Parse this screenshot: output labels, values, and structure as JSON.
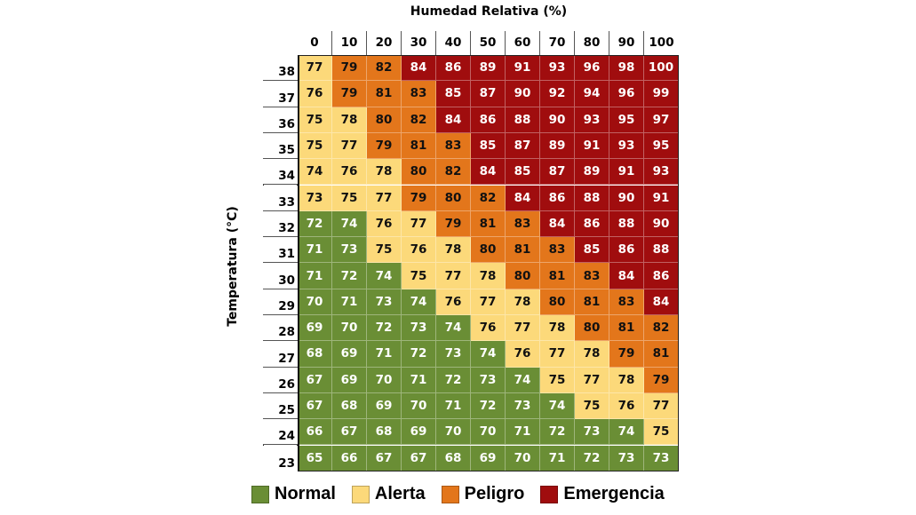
{
  "chart_data": {
    "type": "heatmap",
    "title": "Humedad Relativa (%)",
    "xlabel": "Humedad Relativa (%)",
    "ylabel": "Temperatura (°C)",
    "x": [
      0,
      10,
      20,
      30,
      40,
      50,
      60,
      70,
      80,
      90,
      100
    ],
    "y": [
      38,
      37,
      36,
      35,
      34,
      33,
      32,
      31,
      30,
      29,
      28,
      27,
      26,
      25,
      24,
      23
    ],
    "values": [
      [
        77,
        79,
        82,
        84,
        86,
        89,
        91,
        93,
        96,
        98,
        100
      ],
      [
        76,
        79,
        81,
        83,
        85,
        87,
        90,
        92,
        94,
        96,
        99
      ],
      [
        75,
        78,
        80,
        82,
        84,
        86,
        88,
        90,
        93,
        95,
        97
      ],
      [
        75,
        77,
        79,
        81,
        83,
        85,
        87,
        89,
        91,
        93,
        95
      ],
      [
        74,
        76,
        78,
        80,
        82,
        84,
        85,
        87,
        89,
        91,
        93
      ],
      [
        73,
        75,
        77,
        79,
        80,
        82,
        84,
        86,
        88,
        90,
        91
      ],
      [
        72,
        74,
        76,
        77,
        79,
        81,
        83,
        84,
        86,
        88,
        90
      ],
      [
        71,
        73,
        75,
        76,
        78,
        80,
        81,
        83,
        85,
        86,
        88
      ],
      [
        71,
        72,
        74,
        75,
        77,
        78,
        80,
        81,
        83,
        84,
        86
      ],
      [
        70,
        71,
        73,
        74,
        76,
        77,
        78,
        80,
        81,
        83,
        84
      ],
      [
        69,
        70,
        72,
        73,
        74,
        76,
        77,
        78,
        80,
        81,
        82
      ],
      [
        68,
        69,
        71,
        72,
        73,
        74,
        76,
        77,
        78,
        79,
        81
      ],
      [
        67,
        69,
        70,
        71,
        72,
        73,
        74,
        75,
        77,
        78,
        79
      ],
      [
        67,
        68,
        69,
        70,
        71,
        72,
        73,
        74,
        75,
        76,
        77
      ],
      [
        66,
        67,
        68,
        69,
        70,
        70,
        71,
        72,
        73,
        74,
        75
      ],
      [
        65,
        66,
        67,
        67,
        68,
        69,
        70,
        71,
        72,
        73,
        73
      ]
    ],
    "categories_grid": [
      "APPEEEEEEEE",
      "APPPEEEEEEE",
      "AAPPEEEEEEE",
      "AAPPPEEEEEE",
      "AAAPPEEEEEE",
      "AAAPPPEEEEE",
      "NNAAPPPEEEE",
      "NNAAAPPPEEE",
      "NNNAAAPPPEE",
      "NNNNAAAPPPE",
      "NNNNNAAAPPP",
      "NNNNNNAAAPP",
      "NNNNNNNAAAP",
      "NNNNNNNNAAA",
      "NNNNNNNNNNA",
      "NNNNNNNNNNN"
    ],
    "legend": [
      {
        "key": "N",
        "label": "Normal",
        "color": "#6a8e35",
        "text_color": "#ffffff"
      },
      {
        "key": "A",
        "label": "Alerta",
        "color": "#fcd97a",
        "text_color": "#111111"
      },
      {
        "key": "P",
        "label": "Peligro",
        "color": "#e3761b",
        "text_color": "#111111"
      },
      {
        "key": "E",
        "label": "Emergencia",
        "color": "#a00d0e",
        "text_color": "#ffffff"
      }
    ],
    "legend_position": "bottom"
  }
}
